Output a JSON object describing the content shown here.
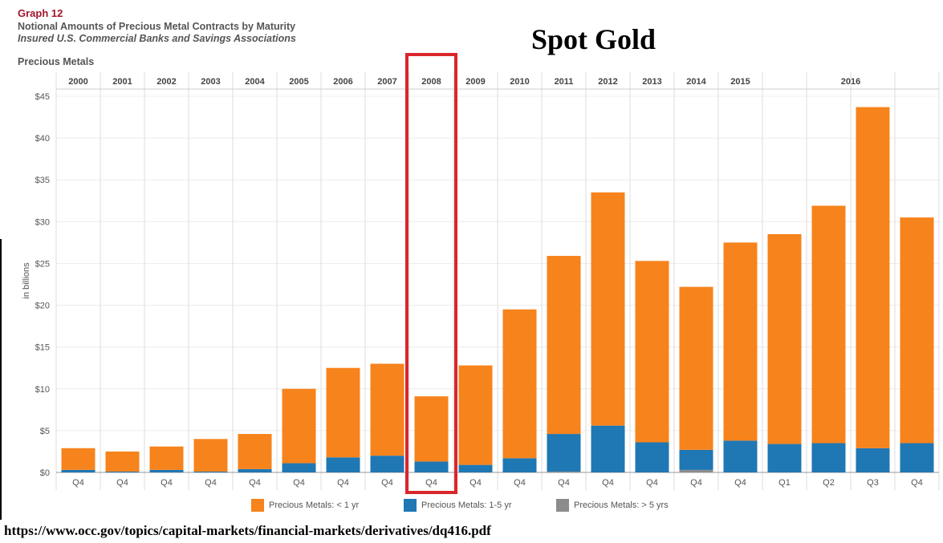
{
  "header": {
    "graph_number": "Graph 12",
    "title": "Notional Amounts of Precious Metal Contracts by Maturity",
    "subtitle": "Insured U.S. Commercial Banks and Savings Associations",
    "section": "Precious Metals"
  },
  "annotation": "Spot Gold",
  "source": "https://www.occ.gov/topics/capital-markets/financial-markets/derivatives/dq416.pdf",
  "colors": {
    "lt1": "#f7831c",
    "y1to5": "#1f77b4",
    "gt5": "#8c8c8c",
    "highlight": "#d9262b"
  },
  "chart_data": {
    "type": "bar",
    "stacked": true,
    "ylabel": "in billions",
    "ylim": [
      0,
      45
    ],
    "yticks": [
      "$0",
      "$5",
      "$10",
      "$15",
      "$20",
      "$25",
      "$30",
      "$35",
      "$40",
      "$45"
    ],
    "year_headers": [
      "2000",
      "2001",
      "2002",
      "2003",
      "2004",
      "2005",
      "2006",
      "2007",
      "2008",
      "2009",
      "2010",
      "2011",
      "2012",
      "2013",
      "2014",
      "2015",
      "2016"
    ],
    "categories": [
      "Q4",
      "Q4",
      "Q4",
      "Q4",
      "Q4",
      "Q4",
      "Q4",
      "Q4",
      "Q4",
      "Q4",
      "Q4",
      "Q4",
      "Q4",
      "Q4",
      "Q4",
      "Q4",
      "Q1",
      "Q2",
      "Q3",
      "Q4"
    ],
    "series": [
      {
        "name": "Precious Metals: < 1 yr",
        "values": [
          2.6,
          2.4,
          2.8,
          3.9,
          4.2,
          8.9,
          10.7,
          11.0,
          7.8,
          11.9,
          17.8,
          21.3,
          27.9,
          21.7,
          19.5,
          23.7,
          25.1,
          28.4,
          40.8,
          27.0
        ]
      },
      {
        "name": "Precious Metals: 1-5 yr",
        "values": [
          0.3,
          0.1,
          0.3,
          0.1,
          0.4,
          1.1,
          1.8,
          2.0,
          1.3,
          0.9,
          1.7,
          4.5,
          5.6,
          3.6,
          2.4,
          3.8,
          3.4,
          3.5,
          2.9,
          3.5
        ]
      },
      {
        "name": "Precious Metals: > 5 yrs",
        "values": [
          0,
          0,
          0,
          0,
          0,
          0,
          0,
          0,
          0,
          0,
          0,
          0.1,
          0,
          0,
          0.3,
          0,
          0,
          0,
          0,
          0
        ]
      }
    ],
    "highlight_year": "2008",
    "legend_position": "bottom"
  }
}
